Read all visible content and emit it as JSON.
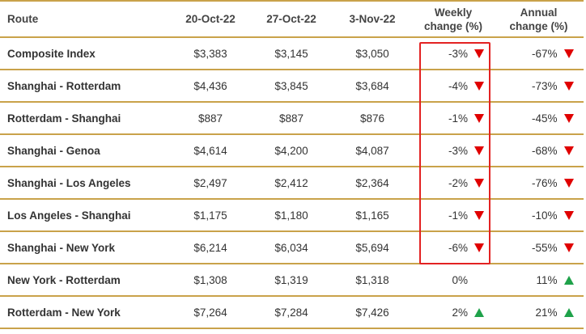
{
  "header": {
    "route": "Route",
    "date1": "20-Oct-22",
    "date2": "27-Oct-22",
    "date3": "3-Nov-22",
    "weekly_line1": "Weekly",
    "weekly_line2": "change (%)",
    "annual_line1": "Annual",
    "annual_line2": "change (%)"
  },
  "colors": {
    "border": "#c9a24a",
    "down": "#e00000",
    "up": "#1fa24a",
    "highlight": "#e32222"
  },
  "rows": [
    {
      "route": "Composite Index",
      "d1": "$3,383",
      "d2": "$3,145",
      "d3": "$3,050",
      "weekly": "-3%",
      "weekly_dir": "down",
      "annual": "-67%",
      "annual_dir": "down"
    },
    {
      "route": "Shanghai - Rotterdam",
      "d1": "$4,436",
      "d2": "$3,845",
      "d3": "$3,684",
      "weekly": "-4%",
      "weekly_dir": "down",
      "annual": "-73%",
      "annual_dir": "down"
    },
    {
      "route": "Rotterdam - Shanghai",
      "d1": "$887",
      "d2": "$887",
      "d3": "$876",
      "weekly": "-1%",
      "weekly_dir": "down",
      "annual": "-45%",
      "annual_dir": "down"
    },
    {
      "route": "Shanghai - Genoa",
      "d1": "$4,614",
      "d2": "$4,200",
      "d3": "$4,087",
      "weekly": "-3%",
      "weekly_dir": "down",
      "annual": "-68%",
      "annual_dir": "down"
    },
    {
      "route": "Shanghai - Los Angeles",
      "d1": "$2,497",
      "d2": "$2,412",
      "d3": "$2,364",
      "weekly": "-2%",
      "weekly_dir": "down",
      "annual": "-76%",
      "annual_dir": "down"
    },
    {
      "route": "Los Angeles - Shanghai",
      "d1": "$1,175",
      "d2": "$1,180",
      "d3": "$1,165",
      "weekly": "-1%",
      "weekly_dir": "down",
      "annual": "-10%",
      "annual_dir": "down"
    },
    {
      "route": "Shanghai - New York",
      "d1": "$6,214",
      "d2": "$6,034",
      "d3": "$5,694",
      "weekly": "-6%",
      "weekly_dir": "down",
      "annual": "-55%",
      "annual_dir": "down"
    },
    {
      "route": "New York - Rotterdam",
      "d1": "$1,308",
      "d2": "$1,319",
      "d3": "$1,318",
      "weekly": "0%",
      "weekly_dir": "none",
      "annual": "11%",
      "annual_dir": "up"
    },
    {
      "route": "Rotterdam - New York",
      "d1": "$7,264",
      "d2": "$7,284",
      "d3": "$7,426",
      "weekly": "2%",
      "weekly_dir": "up",
      "annual": "21%",
      "annual_dir": "up"
    }
  ]
}
